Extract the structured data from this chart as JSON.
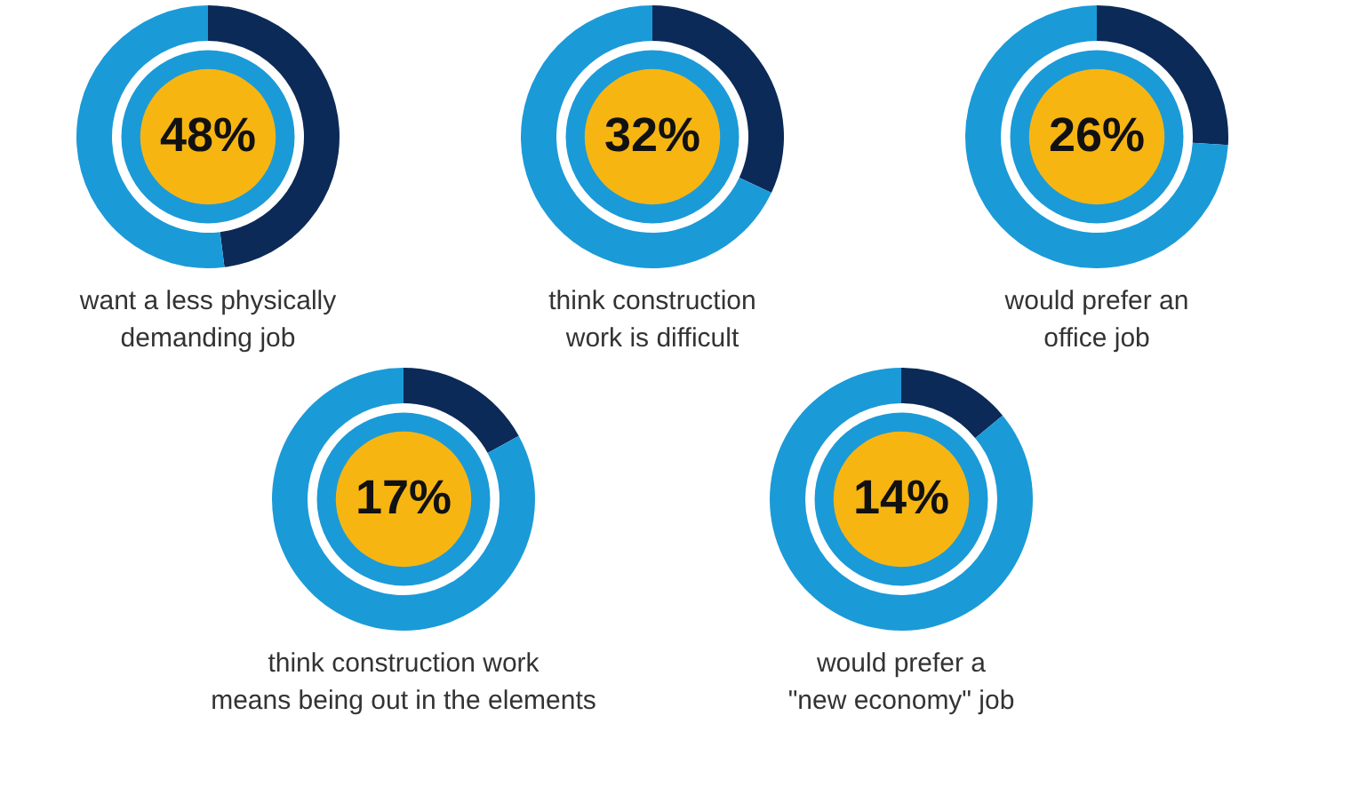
{
  "chart_data": [
    {
      "type": "donut",
      "title": "want a less physically\ndemanding job",
      "categories": [
        null,
        null
      ],
      "values": [
        48,
        52
      ],
      "colors": [
        "#0c2a57",
        "#1b9ad8"
      ],
      "value_labels": [
        "48%",
        null
      ]
    },
    {
      "type": "donut",
      "title": "think construction\nwork is difficult",
      "categories": [
        null,
        null
      ],
      "values": [
        32,
        68
      ],
      "colors": [
        "#0c2a57",
        "#1b9ad8"
      ],
      "value_labels": [
        "32%",
        null
      ]
    },
    {
      "type": "donut",
      "title": "would prefer an\noffice job",
      "categories": [
        null,
        null
      ],
      "values": [
        26,
        74
      ],
      "colors": [
        "#0c2a57",
        "#1b9ad8"
      ],
      "value_labels": [
        "26%",
        null
      ]
    },
    {
      "type": "donut",
      "title": "think construction work\nmeans being out in the elements",
      "categories": [
        null,
        null
      ],
      "values": [
        17,
        83
      ],
      "colors": [
        "#0c2a57",
        "#1b9ad8"
      ],
      "value_labels": [
        "17%",
        null
      ]
    },
    {
      "type": "donut",
      "title": "would prefer a\n\"new economy\" job",
      "categories": [
        null,
        null
      ],
      "values": [
        14,
        86
      ],
      "colors": [
        "#0c2a57",
        "#1b9ad8"
      ],
      "value_labels": [
        "14%",
        null
      ]
    }
  ]
}
